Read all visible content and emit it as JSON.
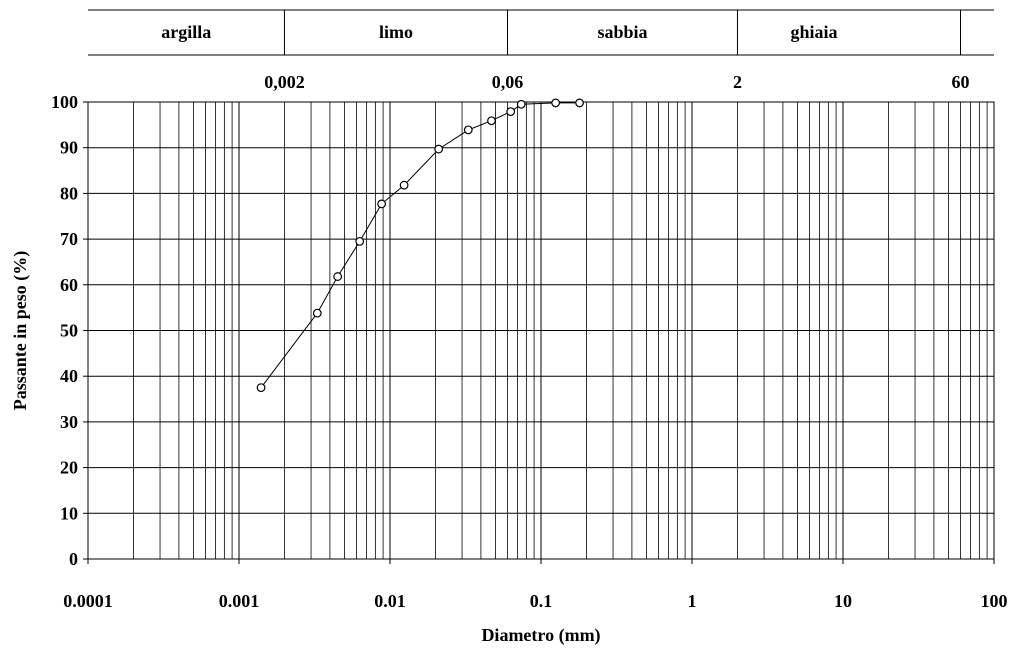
{
  "chart_data": {
    "type": "scatter",
    "title": "",
    "xlabel": "Diametro (mm)",
    "ylabel": "Passante in peso (%)",
    "x_scale": "log",
    "xlim": [
      0.0001,
      100
    ],
    "ylim": [
      0,
      100
    ],
    "x_ticks": [
      {
        "value": 0.0001,
        "label": "0.0001"
      },
      {
        "value": 0.001,
        "label": "0.001"
      },
      {
        "value": 0.01,
        "label": "0.01"
      },
      {
        "value": 0.1,
        "label": "0.1"
      },
      {
        "value": 1,
        "label": "1"
      },
      {
        "value": 10,
        "label": "10"
      },
      {
        "value": 100,
        "label": "100"
      }
    ],
    "y_ticks": [
      0,
      10,
      20,
      30,
      40,
      50,
      60,
      70,
      80,
      90,
      100
    ],
    "grid": true,
    "series": [
      {
        "line": true,
        "marker": "open-circle",
        "points": [
          {
            "x": 0.0014,
            "y": 37.5
          },
          {
            "x": 0.0033,
            "y": 53.8
          },
          {
            "x": 0.0045,
            "y": 61.8
          },
          {
            "x": 0.0063,
            "y": 69.5
          },
          {
            "x": 0.0088,
            "y": 77.7
          },
          {
            "x": 0.0124,
            "y": 81.8
          },
          {
            "x": 0.021,
            "y": 89.7
          },
          {
            "x": 0.033,
            "y": 93.9
          },
          {
            "x": 0.047,
            "y": 95.9
          },
          {
            "x": 0.063,
            "y": 97.9
          },
          {
            "x": 0.074,
            "y": 99.5
          },
          {
            "x": 0.125,
            "y": 99.8
          },
          {
            "x": 0.18,
            "y": 99.8
          }
        ]
      }
    ],
    "soil_classes": {
      "names": [
        "argilla",
        "limo",
        "sabbia",
        "ghiaia"
      ],
      "boundaries": [
        {
          "value": 0.002,
          "label": "0,002"
        },
        {
          "value": 0.06,
          "label": "0,06"
        },
        {
          "value": 2,
          "label": "2"
        },
        {
          "value": 60,
          "label": "60"
        }
      ]
    }
  }
}
